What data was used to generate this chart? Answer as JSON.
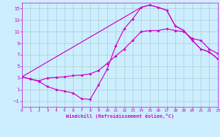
{
  "background_color": "#cceeff",
  "grid_color": "#aacccc",
  "line_color": "#cc00cc",
  "xlim": [
    0,
    23
  ],
  "ylim": [
    -2,
    16
  ],
  "xticks": [
    0,
    1,
    2,
    3,
    4,
    5,
    6,
    7,
    8,
    9,
    10,
    11,
    12,
    13,
    14,
    15,
    16,
    17,
    18,
    19,
    20,
    21,
    22,
    23
  ],
  "yticks": [
    -1,
    1,
    3,
    5,
    7,
    9,
    11,
    13,
    15
  ],
  "xlabel": "Windchill (Refroidissement éolien,°C)",
  "line_zigzag_x": [
    0,
    1,
    2,
    3,
    4,
    5,
    6,
    7,
    8,
    9,
    10,
    11,
    12,
    13,
    14,
    15,
    16,
    17,
    18,
    19,
    20,
    21,
    22,
    23
  ],
  "line_zigzag_y": [
    3.2,
    2.8,
    2.4,
    1.5,
    1.0,
    0.7,
    0.4,
    -0.6,
    -0.7,
    1.8,
    4.5,
    8.5,
    11.5,
    13.2,
    15.2,
    15.6,
    15.2,
    14.7,
    12.0,
    11.2,
    9.5,
    8.0,
    7.5,
    6.3
  ],
  "line_middle_x": [
    0,
    1,
    2,
    3,
    4,
    5,
    6,
    7,
    8,
    9,
    10,
    11,
    12,
    13,
    14,
    15,
    16,
    17,
    18,
    19,
    20,
    21,
    22,
    23
  ],
  "line_middle_y": [
    3.2,
    2.8,
    2.5,
    3.0,
    3.1,
    3.2,
    3.4,
    3.5,
    3.7,
    4.3,
    5.5,
    6.8,
    8.0,
    9.5,
    11.0,
    11.2,
    11.2,
    11.5,
    11.2,
    11.0,
    9.8,
    9.5,
    8.0,
    7.2
  ],
  "line_upper_x": [
    0,
    14,
    15,
    16,
    17,
    18,
    19,
    20,
    21,
    22,
    23
  ],
  "line_upper_y": [
    3.2,
    15.2,
    15.6,
    15.2,
    14.7,
    12.0,
    11.2,
    9.5,
    8.0,
    7.5,
    6.3
  ]
}
